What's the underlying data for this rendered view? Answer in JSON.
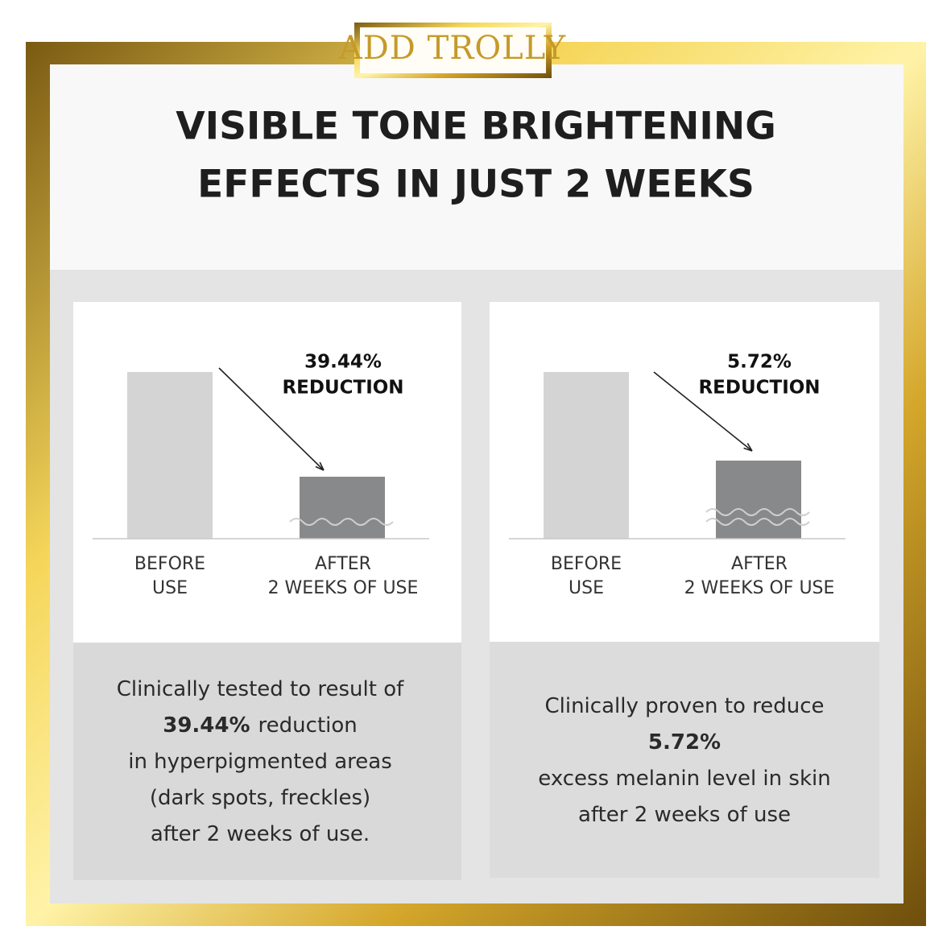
{
  "brand": "ADD TROLLY",
  "title": [
    "VISIBLE TONE BRIGHTENING",
    "EFFECTS IN JUST 2 WEEKS"
  ],
  "panels": [
    {
      "callout": [
        "39.44%",
        "REDUCTION"
      ],
      "before_label": [
        "BEFORE",
        "USE"
      ],
      "after_label": [
        "AFTER",
        "2 WEEKS OF USE"
      ],
      "description": [
        {
          "text": "Clinically tested to result of"
        },
        {
          "strong": "39.44%",
          "text": "reduction"
        },
        {
          "text": "in hyperpigmented areas"
        },
        {
          "text": "(dark spots, freckles)"
        },
        {
          "text": "after 2 weeks of use."
        }
      ]
    },
    {
      "callout": [
        "5.72%",
        "REDUCTION"
      ],
      "before_label": [
        "BEFORE",
        "USE"
      ],
      "after_label": [
        "AFTER",
        "2 WEEKS OF USE"
      ],
      "description": [
        {
          "text": "Clinically proven to reduce"
        },
        {
          "strong": "5.72%"
        },
        {
          "text": "excess melanin level in skin"
        },
        {
          "text": "after 2 weeks of use"
        }
      ]
    }
  ]
}
